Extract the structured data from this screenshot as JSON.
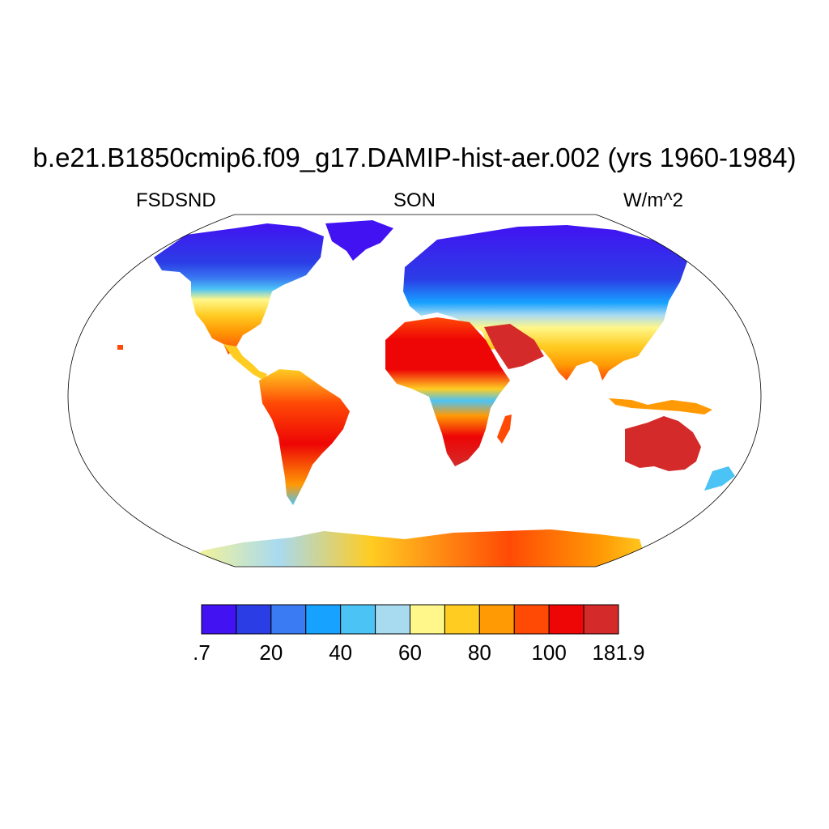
{
  "title": "b.e21.B1850cmip6.f09_g17.DAMIP-hist-aer.002 (yrs 1960-1984)",
  "subtitle": {
    "left": "FSDSND",
    "center": "SON",
    "right": "W/m^2"
  },
  "map": {
    "projection": "Robinson",
    "background": "#ffffff",
    "coastline_color": "#000000"
  },
  "colorbar": {
    "colors": [
      "#4212f2",
      "#2b3ee6",
      "#3a7af2",
      "#18a2ff",
      "#4cc3f5",
      "#a8daf0",
      "#fff78a",
      "#ffcc22",
      "#ff9a05",
      "#ff4a05",
      "#ee0505",
      "#d42a2a"
    ],
    "labels": [
      ".7",
      "20",
      "40",
      "60",
      "80",
      "100",
      "181.9"
    ]
  }
}
